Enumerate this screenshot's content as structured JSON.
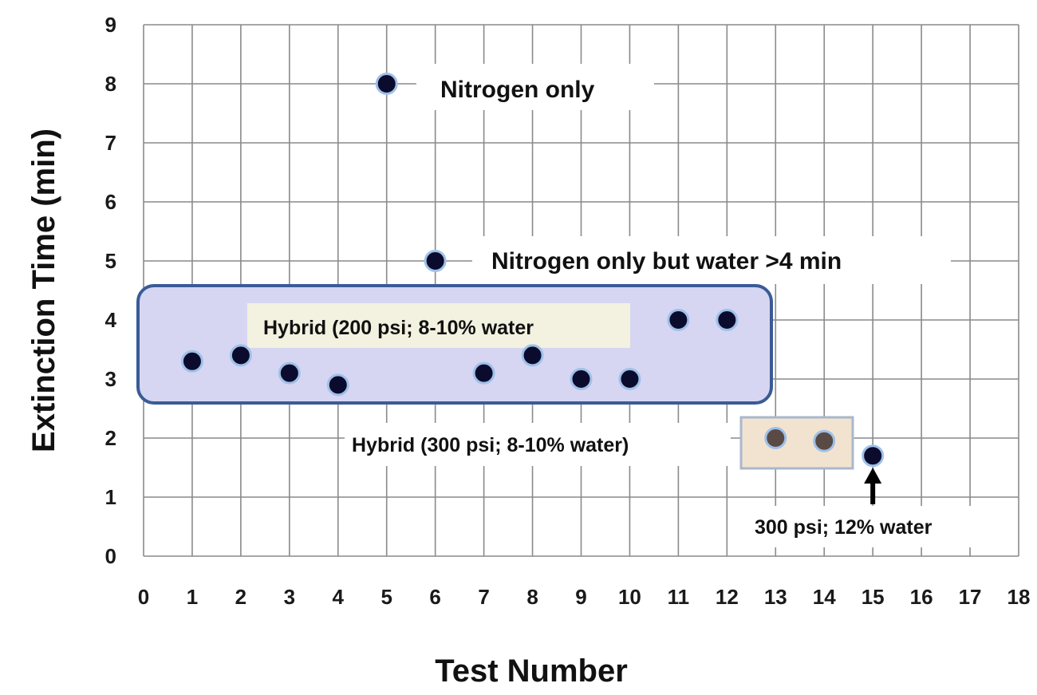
{
  "chart_data": {
    "type": "scatter",
    "xlabel": "Test  Number",
    "ylabel": "Extinction Time (min)",
    "xlim": [
      0,
      18
    ],
    "ylim": [
      0,
      9
    ],
    "xticks": [
      "0",
      "1",
      "2",
      "3",
      "4",
      "5",
      "6",
      "7",
      "8",
      "9",
      "10",
      "11",
      "12",
      "13",
      "14",
      "15",
      "16",
      "17",
      "18"
    ],
    "yticks": [
      "0",
      "1",
      "2",
      "3",
      "4",
      "5",
      "6",
      "7",
      "8",
      "9"
    ],
    "grid": true,
    "series": [
      {
        "color": "#0b0b2e",
        "points": [
          {
            "x": 1,
            "y": 3.3
          },
          {
            "x": 2,
            "y": 3.4
          },
          {
            "x": 3,
            "y": 3.1
          },
          {
            "x": 4,
            "y": 2.9
          },
          {
            "x": 5,
            "y": 8.0
          },
          {
            "x": 6,
            "y": 5.0
          },
          {
            "x": 7,
            "y": 3.1
          },
          {
            "x": 8,
            "y": 3.4
          },
          {
            "x": 9,
            "y": 3.0
          },
          {
            "x": 10,
            "y": 3.0
          },
          {
            "x": 11,
            "y": 4.0
          },
          {
            "x": 12,
            "y": 4.0
          },
          {
            "x": 15,
            "y": 1.7
          }
        ]
      },
      {
        "color": "#5a4a45",
        "points": [
          {
            "x": 13,
            "y": 2.0
          },
          {
            "x": 14,
            "y": 1.95
          }
        ]
      }
    ],
    "annotations": {
      "nitrogen_only": "Nitrogen  only",
      "nitrogen_water": "Nitrogen  only  but  water  >4  min",
      "hybrid_200": "Hybrid (200 psi; 8-10% water",
      "hybrid_300": "Hybrid (300 psi; 8-10% water)",
      "psi300_12": "300 psi; 12% water"
    },
    "colors": {
      "marker_edge": "#9fc0e8",
      "group_200_fill": "#d6d6f2",
      "group_200_border": "#3a5b96",
      "group_300_fill": "#f2e3d0",
      "group_300_border": "#a8b8cc",
      "label_bg": "#f3f1e0"
    }
  }
}
